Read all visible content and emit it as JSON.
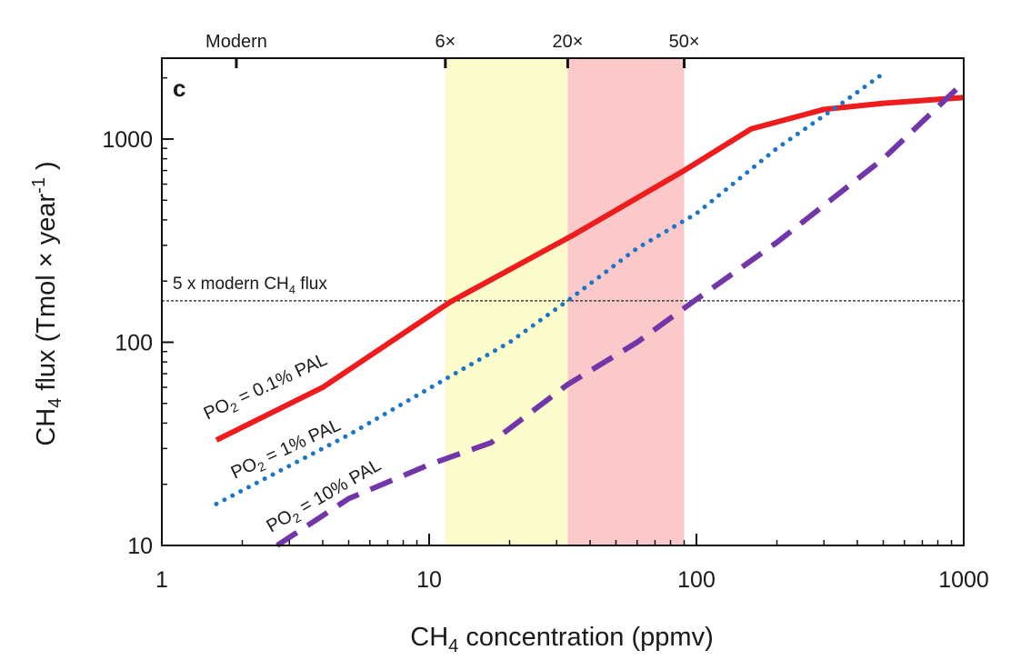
{
  "chart_data": {
    "type": "line",
    "panel_label": "c",
    "xlabel": {
      "main": "CH",
      "sub": "4",
      "rest": " concentration (ppmv)"
    },
    "ylabel": {
      "main": "CH",
      "sub": "4",
      "rest": " flux (Tmol × year",
      "sup": "-1",
      "end": " )"
    },
    "x_scale": "log",
    "y_scale": "log",
    "xlim": [
      1,
      1000
    ],
    "ylim": [
      10,
      2500
    ],
    "x_ticks": [
      {
        "value": 1,
        "label": "1"
      },
      {
        "value": 10,
        "label": "10"
      },
      {
        "value": 100,
        "label": "100"
      },
      {
        "value": 1000,
        "label": "1000"
      }
    ],
    "y_ticks": [
      {
        "value": 10,
        "label": "10"
      },
      {
        "value": 100,
        "label": "100"
      },
      {
        "value": 1000,
        "label": "1000"
      }
    ],
    "top_ticks": [
      {
        "value": 1.9,
        "label": "Modern"
      },
      {
        "value": 11.5,
        "label": "6×"
      },
      {
        "value": 33,
        "label": "20×"
      },
      {
        "value": 90,
        "label": "50×"
      }
    ],
    "shaded_bands": [
      {
        "from": 11.5,
        "to": 33,
        "color": "#fdfccc"
      },
      {
        "from": 33,
        "to": 90,
        "color": "#fbc9c9"
      }
    ],
    "reference_line": {
      "y": 160,
      "label": {
        "main": "5 x modern CH",
        "sub": "4",
        "rest": " flux"
      }
    },
    "series": [
      {
        "name": {
          "main": "PO",
          "sub": "2",
          "rest": " = 0.1% PAL"
        },
        "color": "#ee1c1c",
        "style": "solid",
        "x": [
          1.6,
          4,
          12,
          35,
          90,
          160,
          300,
          500,
          1000
        ],
        "y": [
          33,
          60,
          158,
          340,
          700,
          1120,
          1400,
          1500,
          1600
        ]
      },
      {
        "name": {
          "main": "PO",
          "sub": "2",
          "rest": " = 1% PAL"
        },
        "color": "#1b75c9",
        "style": "dotted",
        "x": [
          1.6,
          5,
          12,
          20,
          33,
          60,
          100,
          200,
          350,
          500
        ],
        "y": [
          16,
          35,
          68,
          100,
          160,
          290,
          430,
          900,
          1500,
          2100
        ]
      },
      {
        "name": {
          "main": "PO",
          "sub": "2",
          "rest": " = 10% PAL"
        },
        "color": "#7236a8",
        "style": "dashed",
        "x": [
          2.7,
          5,
          10,
          17,
          33,
          60,
          95,
          200,
          500,
          1000
        ],
        "y": [
          10,
          17,
          25,
          32,
          62,
          100,
          155,
          310,
          800,
          1900
        ]
      }
    ]
  }
}
